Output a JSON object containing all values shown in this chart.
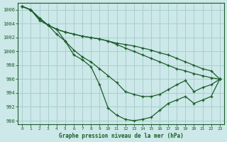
{
  "title": "Graphe pression niveau de la mer (hPa)",
  "bg_color": "#cce8e8",
  "grid_color": "#a8cece",
  "line_color": "#1a5c2a",
  "xlim": [
    -0.5,
    23.5
  ],
  "ylim": [
    989.5,
    1007.0
  ],
  "yticks": [
    990,
    992,
    994,
    996,
    998,
    1000,
    1002,
    1004,
    1006
  ],
  "xticks": [
    0,
    1,
    2,
    3,
    4,
    5,
    6,
    7,
    8,
    9,
    10,
    11,
    12,
    13,
    14,
    15,
    16,
    17,
    18,
    19,
    20,
    21,
    22,
    23
  ],
  "series": [
    [
      1006.5,
      1006.0,
      1004.8,
      1003.8,
      1003.2,
      1002.8,
      1002.5,
      1002.2,
      1002.0,
      1001.8,
      1001.5,
      1001.2,
      1001.0,
      1000.8,
      1000.5,
      1000.2,
      999.8,
      999.5,
      999.0,
      998.5,
      998.0,
      997.5,
      997.2,
      996.0
    ],
    [
      1006.5,
      1006.0,
      1004.8,
      1003.8,
      1003.2,
      1002.8,
      1002.5,
      1002.2,
      1002.0,
      1001.8,
      1001.5,
      1001.0,
      1000.5,
      1000.0,
      999.5,
      999.0,
      998.5,
      998.0,
      997.5,
      997.2,
      996.8,
      996.5,
      996.2,
      996.0
    ],
    [
      1006.5,
      1006.0,
      1004.5,
      1003.8,
      1003.2,
      1001.5,
      1000.2,
      999.2,
      998.5,
      997.5,
      996.5,
      995.5,
      994.2,
      993.8,
      993.5,
      993.5,
      993.8,
      994.5,
      995.2,
      995.8,
      994.2,
      994.8,
      995.2,
      996.0
    ],
    [
      1006.5,
      1006.0,
      1004.8,
      1003.8,
      1002.5,
      1001.5,
      999.5,
      998.8,
      997.8,
      995.2,
      991.8,
      990.8,
      990.2,
      990.0,
      990.2,
      990.5,
      991.5,
      992.5,
      993.0,
      993.5,
      992.5,
      993.0,
      993.5,
      996.0
    ]
  ]
}
